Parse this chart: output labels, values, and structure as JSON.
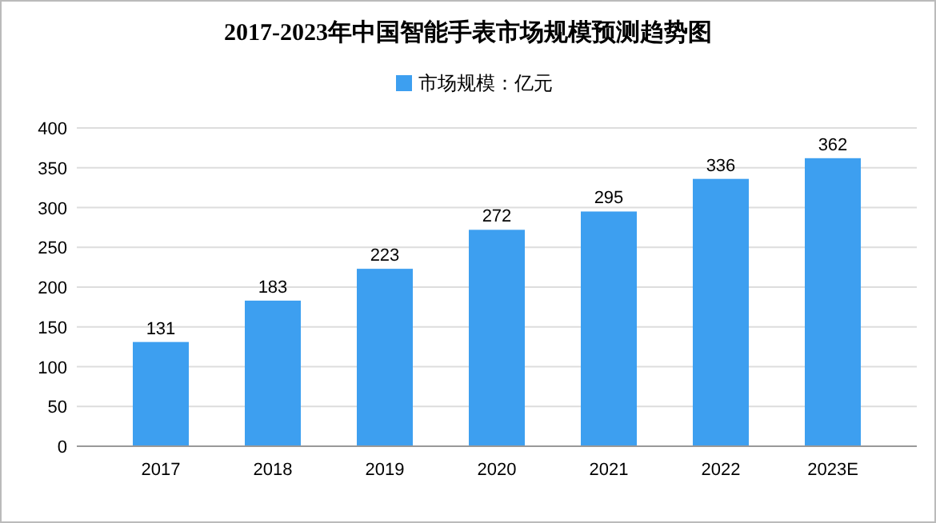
{
  "chart_data": {
    "type": "bar",
    "title": "2017-2023年中国智能手表市场规模预测趋势图",
    "categories": [
      "2017",
      "2018",
      "2019",
      "2020",
      "2021",
      "2022",
      "2023E"
    ],
    "series": [
      {
        "name": "市场规模：亿元",
        "color": "#3d9ff0",
        "values": [
          131,
          183,
          223,
          272,
          295,
          336,
          362
        ]
      }
    ],
    "ylim": [
      0,
      400
    ],
    "yticks": [
      0,
      50,
      100,
      150,
      200,
      250,
      300,
      350,
      400
    ],
    "grid": "y",
    "legend": "top",
    "data_labels": true
  }
}
